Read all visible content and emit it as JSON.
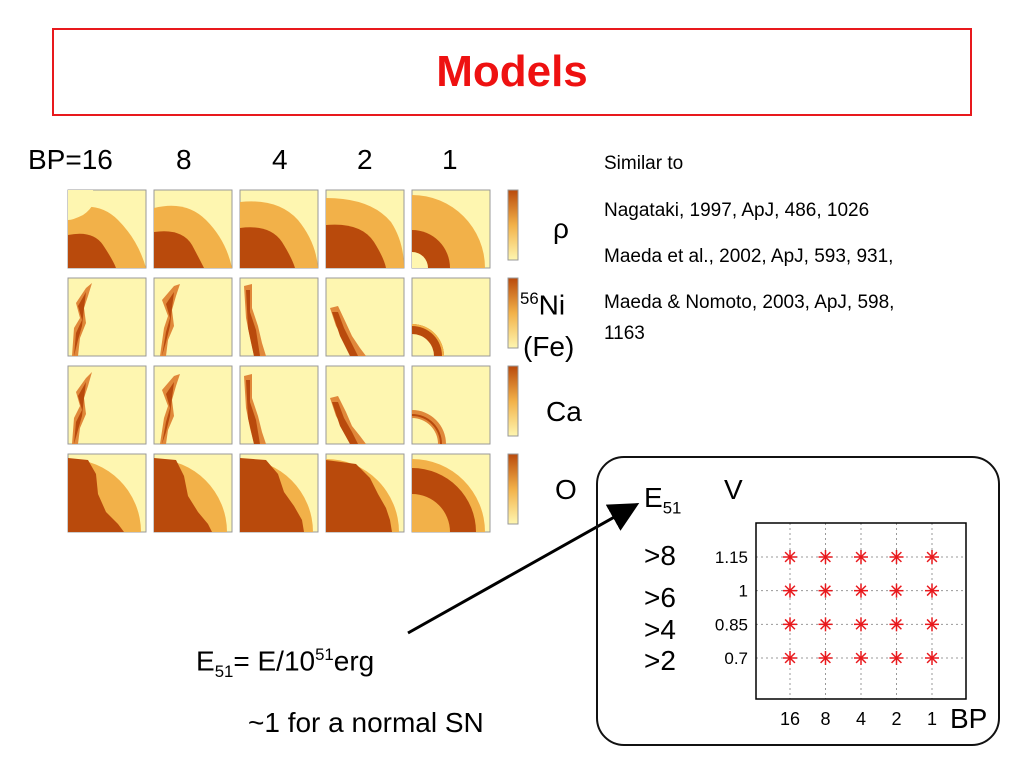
{
  "title": "Models",
  "bp_labels": [
    "BP=16",
    "8",
    "4",
    "2",
    "1"
  ],
  "row_labels": {
    "rho": "ρ",
    "ni_sup": "56",
    "ni_main": "Ni",
    "fe": "(Fe)",
    "ca": "Ca",
    "o": "O"
  },
  "references": [
    "Similar to",
    "Nagataki, 1997, ApJ, 486, 1026",
    "Maeda et al., 2002, ApJ, 593, 931,",
    "Maeda & Nomoto, 2003, ApJ, 598,",
    "1163"
  ],
  "energy_note": {
    "label": "E",
    "label_sub": "51",
    "eq": "= E/10",
    "exp": "51",
    "unit": "erg",
    "normal": "~1 for a normal SN"
  },
  "model_grid": {
    "e51_label": "E",
    "e51_sub": "51",
    "v_label": "V",
    "e51_values": [
      ">8",
      ">6",
      ">4",
      ">2"
    ],
    "bp_axis_label": "BP"
  },
  "chart_data": {
    "type": "scatter",
    "x_categories": [
      "16",
      "8",
      "4",
      "2",
      "1"
    ],
    "y_tick_labels": [
      "1.15",
      "1",
      "0.85",
      "0.7"
    ],
    "points": [
      {
        "bp": "16",
        "v": 1.15
      },
      {
        "bp": "8",
        "v": 1.15
      },
      {
        "bp": "4",
        "v": 1.15
      },
      {
        "bp": "2",
        "v": 1.15
      },
      {
        "bp": "1",
        "v": 1.15
      },
      {
        "bp": "16",
        "v": 1
      },
      {
        "bp": "8",
        "v": 1
      },
      {
        "bp": "4",
        "v": 1
      },
      {
        "bp": "2",
        "v": 1
      },
      {
        "bp": "1",
        "v": 1
      },
      {
        "bp": "16",
        "v": 0.85
      },
      {
        "bp": "8",
        "v": 0.85
      },
      {
        "bp": "4",
        "v": 0.85
      },
      {
        "bp": "2",
        "v": 0.85
      },
      {
        "bp": "1",
        "v": 0.85
      },
      {
        "bp": "16",
        "v": 0.7
      },
      {
        "bp": "8",
        "v": 0.7
      },
      {
        "bp": "4",
        "v": 0.7
      },
      {
        "bp": "2",
        "v": 0.7
      },
      {
        "bp": "1",
        "v": 0.7
      }
    ],
    "marker_color": "#e8191d",
    "grid": true
  },
  "colors": {
    "title": "#ee1111",
    "panel_bg": "#fef6b0",
    "panel_mid": "#f2b149",
    "panel_dark": "#b94a0c"
  }
}
